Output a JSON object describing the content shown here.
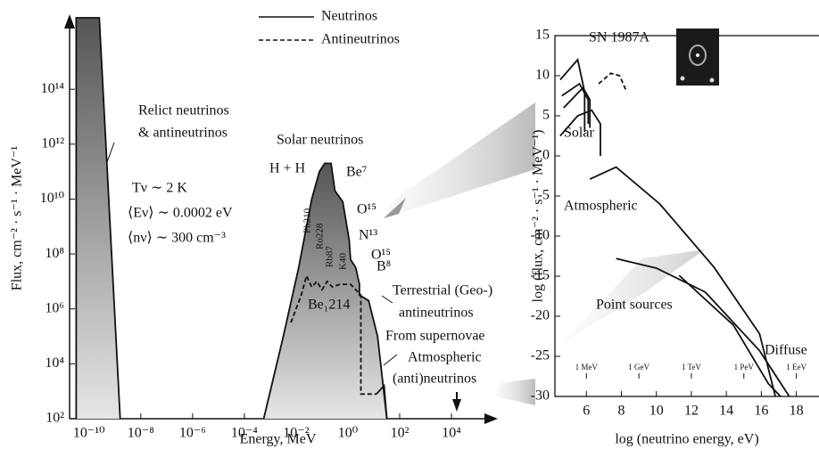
{
  "chart_data": [
    {
      "type": "line",
      "log": true,
      "xlabel": "Energy, MeV",
      "ylabel": "Flux, cm⁻² · s⁻¹ · MeV⁻¹",
      "xlim": [
        1.78e-11,
        220000.0
      ],
      "ylim": [
        100,
        4e+16
      ],
      "xticks": [
        {
          "value": 1e-10,
          "label": "10⁻¹⁰"
        },
        {
          "value": 1e-08,
          "label": "10⁻⁸"
        },
        {
          "value": 1e-06,
          "label": "10⁻⁶"
        },
        {
          "value": 0.0001,
          "label": "10⁻⁴"
        },
        {
          "value": 0.01,
          "label": "10⁻²"
        },
        {
          "value": 1,
          "label": "10⁰"
        },
        {
          "value": 100,
          "label": "10²"
        },
        {
          "value": 10000,
          "label": "10⁴"
        }
      ],
      "yticks": [
        {
          "value": 100,
          "label": "10²"
        },
        {
          "value": 10000,
          "label": "10⁴"
        },
        {
          "value": 1000000.0,
          "label": "10⁶"
        },
        {
          "value": 100000000.0,
          "label": "10⁸"
        },
        {
          "value": 10000000000.0,
          "label": "10¹⁰"
        },
        {
          "value": 1000000000000.0,
          "label": "10¹²"
        },
        {
          "value": 100000000000000.0,
          "label": "10¹⁴"
        }
      ],
      "legend": [
        {
          "name": "Neutrinos",
          "dash": "solid"
        },
        {
          "name": "Antineutrinos",
          "dash": "dashed"
        }
      ],
      "series": [
        {
          "dash": "solid",
          "fill": true,
          "x": [
            3.2e-11,
            3.2e-11,
            2.5e-10,
            1.6e-09
          ],
          "values": [
            100,
            4e+16,
            4e+16,
            100
          ]
        },
        {
          "dash": "solid",
          "fill": true,
          "x": [
            0.00056,
            0.0032,
            0.0126,
            0.04,
            0.079,
            0.126,
            0.224,
            0.316,
            0.631,
            1.12,
            1.26,
            2,
            2.8,
            2.8,
            6.3,
            14,
            32
          ],
          "values": [
            100,
            100000.0,
            32000000.0,
            10000000000.0,
            100000000000.0,
            200000000000.0,
            200000000000.0,
            20000000000.0,
            8000000000.0,
            320000000.0,
            63000000.0,
            32000000.0,
            7900000.0,
            3200000.0,
            2000000.0,
            100000.0,
            100
          ]
        },
        {
          "dash": "dashed",
          "fill": false,
          "x": [
            0.0063,
            0.0158,
            0.025,
            0.04,
            0.063,
            0.1,
            0.158,
            0.251,
            0.5,
            1.26,
            3.16,
            3.16,
            12.6
          ],
          "values": [
            320000.0,
            3200000.0,
            16000000.0,
            6300000.0,
            10000000.0,
            5000000.0,
            10000000.0,
            6300000.0,
            7900000.0,
            7900000.0,
            3200000.0,
            790,
            790
          ]
        },
        {
          "dash": "solid",
          "fill": false,
          "x": [
            12.6,
            25,
            32
          ],
          "values": [
            790,
            1600,
            100
          ]
        }
      ],
      "annotations": [
        "Relict neutrinos",
        "& antineutrinos",
        "Tν ∼ 2 K",
        "⟨Eν⟩ ∼ 0.0002 eV",
        "⟨nν⟩ ∼ 300 cm⁻³",
        "Solar neutrinos",
        "H + H",
        "Be⁷",
        "O¹⁵",
        "N¹³",
        "O¹⁵",
        "B⁸",
        "Pb210",
        "Ro228",
        "Rb87",
        "K40",
        "Be₁214",
        "Terrestrial (Geo-)",
        "antineutrinos",
        "From supernovae",
        "Atmospheric",
        "(anti)neutrinos"
      ]
    },
    {
      "type": "line",
      "log": false,
      "xlabel": "log (neutrino energy, eV)",
      "ylabel": "log (flux, cm⁻² · s⁻¹ · MeV⁻¹)",
      "xlim": [
        4.2,
        19.5
      ],
      "ylim": [
        -30,
        15
      ],
      "xticks": [
        6,
        8,
        10,
        12,
        14,
        16,
        18
      ],
      "yticks": [
        -30,
        -25,
        -20,
        -15,
        -10,
        -5,
        0,
        5,
        10,
        15
      ],
      "energy_ticks": [
        {
          "value": 6,
          "label": "1 MeV"
        },
        {
          "value": 9,
          "label": "1 GeV"
        },
        {
          "value": 12,
          "label": "1 TeV"
        },
        {
          "value": 15,
          "label": "1 PeV"
        },
        {
          "value": 18,
          "label": "1 EeV"
        }
      ],
      "series": [
        {
          "dash": "solid",
          "x": [
            4.5,
            5.5,
            5.9,
            5.9
          ],
          "values": [
            9.5,
            12,
            8,
            3
          ]
        },
        {
          "dash": "solid",
          "x": [
            4.6,
            5.6,
            6.1,
            6.1
          ],
          "values": [
            7.5,
            9,
            7,
            4
          ]
        },
        {
          "dash": "solid",
          "x": [
            4.7,
            5.8,
            6.2,
            6.2
          ],
          "values": [
            6,
            8.5,
            7,
            3.5
          ]
        },
        {
          "dash": "dashed",
          "x": [
            6.7,
            7.4,
            7.9,
            8.3
          ],
          "values": [
            9,
            10.3,
            10,
            8
          ]
        },
        {
          "dash": "solid",
          "x": [
            4.5,
            5.5,
            6.3,
            6.8,
            6.8
          ],
          "values": [
            2.5,
            5,
            5.7,
            4,
            0
          ]
        },
        {
          "dash": "solid",
          "x": [
            6.2,
            7.7,
            10.2,
            13.3,
            15.9,
            16.8
          ],
          "values": [
            -2.9,
            -1.4,
            -6,
            -13.9,
            -22.2,
            -30
          ]
        },
        {
          "dash": "solid",
          "x": [
            7.7,
            10,
            12.8,
            15.9,
            17.6
          ],
          "values": [
            -12.8,
            -14,
            -17,
            -24.3,
            -30
          ]
        },
        {
          "dash": "solid",
          "x": [
            11.3,
            14.4,
            16.4,
            17.1
          ],
          "values": [
            -14.9,
            -21.1,
            -28.4,
            -30
          ]
        }
      ],
      "annotations": [
        "SN 1987A",
        "Solar",
        "Atmospheric",
        "Point sources",
        "Diffuse"
      ]
    }
  ]
}
